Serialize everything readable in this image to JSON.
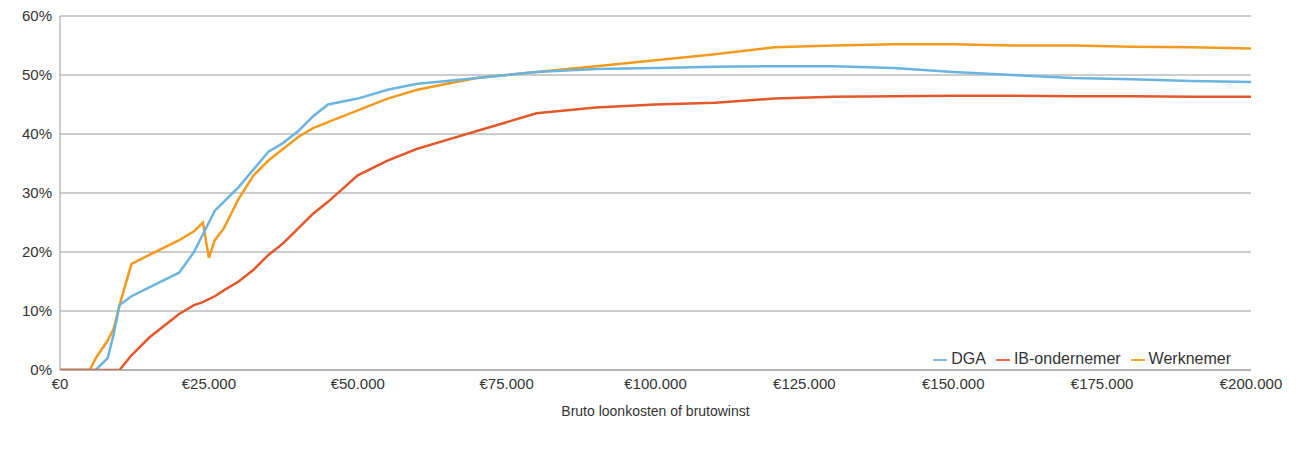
{
  "chart_data": {
    "type": "line",
    "x_label": "Bruto loonkosten of brutowinst",
    "x": [
      0,
      5000,
      6000,
      8000,
      9000,
      10000,
      12000,
      15000,
      20000,
      22500,
      24000,
      25000,
      26000,
      27500,
      30000,
      32500,
      35000,
      37500,
      40000,
      42500,
      45000,
      50000,
      55000,
      60000,
      65000,
      70000,
      75000,
      80000,
      90000,
      100000,
      110000,
      120000,
      130000,
      140000,
      150000,
      160000,
      170000,
      180000,
      190000,
      200000
    ],
    "series": [
      {
        "name": "Werknemer",
        "color": "#f39a1e",
        "values": [
          0,
          0,
          2,
          5,
          7,
          11,
          18,
          19.5,
          22,
          23.5,
          25,
          19,
          22,
          24,
          29,
          33,
          35.5,
          37.5,
          39.5,
          41,
          42,
          44,
          46,
          47.5,
          48.5,
          49.5,
          50,
          50.5,
          51.5,
          52.5,
          53.5,
          54.7,
          55,
          55.2,
          55.2,
          55,
          55,
          54.8,
          54.7,
          54.5
        ]
      },
      {
        "name": "DGA",
        "color": "#6ab4e0",
        "values": [
          0,
          0,
          0,
          2,
          6,
          11,
          12.5,
          14,
          16.5,
          20,
          23,
          25,
          27,
          28.5,
          31,
          34,
          37,
          38.5,
          40.5,
          43,
          45,
          46,
          47.5,
          48.5,
          49,
          49.5,
          50,
          50.5,
          51,
          51.2,
          51.4,
          51.5,
          51.5,
          51.2,
          50.5,
          50,
          49.5,
          49.3,
          49,
          48.8
        ]
      },
      {
        "name": "IB-ondernemer",
        "color": "#e2582a",
        "values": [
          0,
          0,
          0,
          0,
          0,
          0,
          2.5,
          5.5,
          9.5,
          11,
          11.5,
          12,
          12.5,
          13.5,
          15,
          17,
          19.5,
          21.5,
          24,
          26.5,
          28.5,
          33,
          35.5,
          37.5,
          39,
          40.5,
          42,
          43.5,
          44.5,
          45,
          45.3,
          46,
          46.3,
          46.4,
          46.5,
          46.5,
          46.4,
          46.4,
          46.3,
          46.3
        ]
      }
    ],
    "xlim": [
      0,
      200000
    ],
    "xticks": [
      {
        "value": 0,
        "label": "€0"
      },
      {
        "value": 25000,
        "label": "€25.000"
      },
      {
        "value": 50000,
        "label": "€50.000"
      },
      {
        "value": 75000,
        "label": "€75.000"
      },
      {
        "value": 100000,
        "label": "€100.000"
      },
      {
        "value": 125000,
        "label": "€125.000"
      },
      {
        "value": 150000,
        "label": "€150.000"
      },
      {
        "value": 175000,
        "label": "€175.000"
      },
      {
        "value": 200000,
        "label": "€200.000"
      }
    ],
    "ylim": [
      0,
      60
    ],
    "yticks": [
      {
        "value": 0,
        "label": "0%"
      },
      {
        "value": 10,
        "label": "10%"
      },
      {
        "value": 20,
        "label": "20%"
      },
      {
        "value": 30,
        "label": "30%"
      },
      {
        "value": 40,
        "label": "40%"
      },
      {
        "value": 50,
        "label": "50%"
      },
      {
        "value": 60,
        "label": "60%"
      }
    ],
    "grid": true,
    "legend": "lower right"
  }
}
